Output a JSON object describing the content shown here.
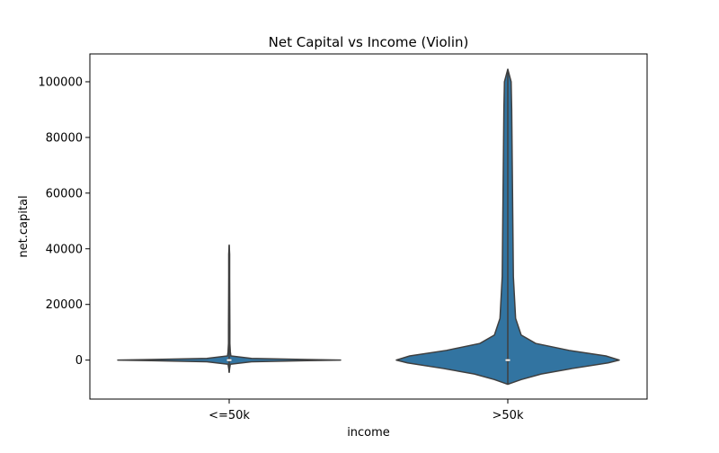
{
  "chart_data": {
    "type": "violin",
    "title": "Net Capital vs Income (Violin)",
    "xlabel": "income",
    "ylabel": "net.capital",
    "categories": [
      "<=50k",
      ">50k"
    ],
    "ylim": [
      -14000,
      110000
    ],
    "yticks": [
      0,
      20000,
      40000,
      60000,
      80000,
      100000
    ],
    "ytick_labels": [
      "0",
      "20000",
      "40000",
      "60000",
      "80000",
      "100000"
    ],
    "grid": false,
    "color": "#3274a1",
    "violins": [
      {
        "category": "<=50k",
        "min": -4400,
        "max": 41300,
        "median": 0,
        "q1": 0,
        "q3": 0,
        "profile": [
          [
            -4400,
            0.0
          ],
          [
            -3000,
            0.004
          ],
          [
            -1500,
            0.01
          ],
          [
            -600,
            0.2
          ],
          [
            -200,
            0.7
          ],
          [
            0,
            1.0
          ],
          [
            200,
            0.7
          ],
          [
            600,
            0.2
          ],
          [
            1500,
            0.015
          ],
          [
            3000,
            0.01
          ],
          [
            6000,
            0.006
          ],
          [
            12000,
            0.006
          ],
          [
            20000,
            0.005
          ],
          [
            30000,
            0.004
          ],
          [
            38000,
            0.004
          ],
          [
            41300,
            0.0
          ]
        ]
      },
      {
        "category": ">50k",
        "min": -8700,
        "max": 104500,
        "median": 0,
        "q1": 0,
        "q3": 0,
        "profile": [
          [
            -8700,
            0.0
          ],
          [
            -7000,
            0.12
          ],
          [
            -5000,
            0.3
          ],
          [
            -3000,
            0.58
          ],
          [
            -1000,
            0.9
          ],
          [
            0,
            1.0
          ],
          [
            1500,
            0.88
          ],
          [
            3500,
            0.55
          ],
          [
            6000,
            0.25
          ],
          [
            9000,
            0.12
          ],
          [
            15000,
            0.07
          ],
          [
            30000,
            0.05
          ],
          [
            50000,
            0.045
          ],
          [
            70000,
            0.04
          ],
          [
            90000,
            0.035
          ],
          [
            100000,
            0.03
          ],
          [
            104500,
            0.0
          ]
        ]
      }
    ]
  }
}
